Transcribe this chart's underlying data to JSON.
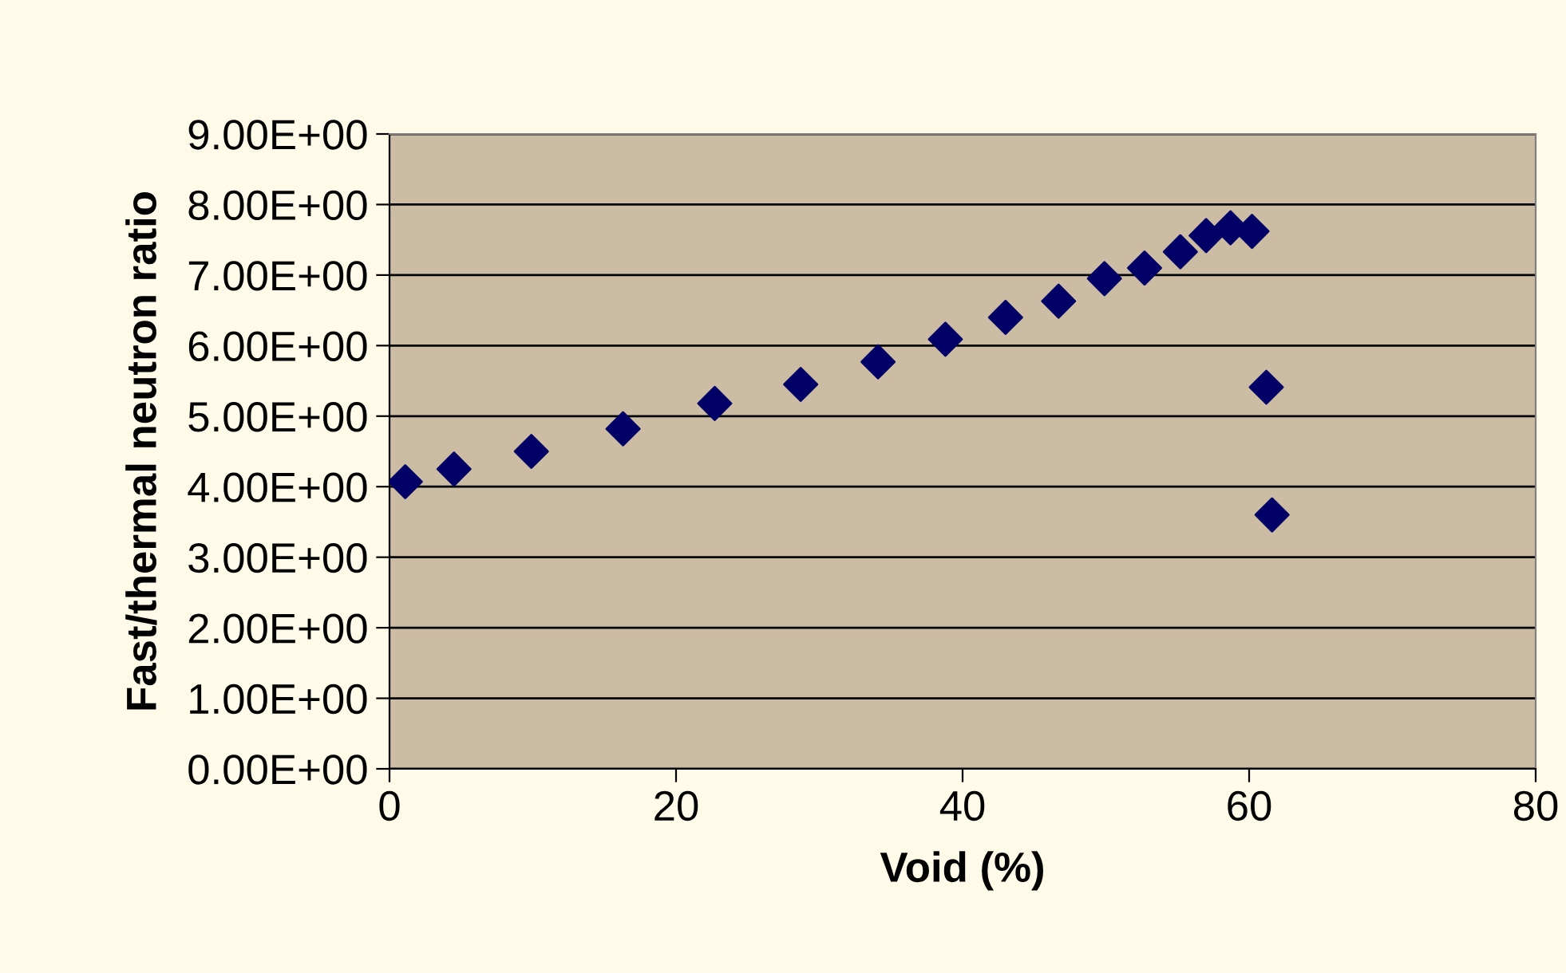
{
  "chart_data": {
    "type": "scatter",
    "xlabel": "Void (%)",
    "ylabel": "Fast/thermal neutron ratio",
    "x": [
      1.1,
      4.5,
      9.9,
      16.3,
      22.7,
      28.7,
      34.1,
      38.8,
      43.0,
      46.7,
      49.9,
      52.7,
      55.2,
      57.0,
      58.7,
      60.2,
      61.2,
      61.6
    ],
    "series": [
      {
        "color": "#000066",
        "values": [
          4.07,
          4.25,
          4.5,
          4.82,
          5.18,
          5.45,
          5.77,
          6.09,
          6.4,
          6.63,
          6.95,
          7.1,
          7.33,
          7.56,
          7.67,
          7.62,
          5.41,
          3.6
        ]
      }
    ],
    "marker": "diamond",
    "grid": "y",
    "legend": false,
    "xlim": [
      0,
      80
    ],
    "xticks": [
      0,
      20,
      40,
      60,
      80
    ],
    "ylim": [
      0,
      9
    ],
    "yticks": [
      {
        "value": 0,
        "label": "0.00E+00"
      },
      {
        "value": 1,
        "label": "1.00E+00"
      },
      {
        "value": 2,
        "label": "2.00E+00"
      },
      {
        "value": 3,
        "label": "3.00E+00"
      },
      {
        "value": 4,
        "label": "4.00E+00"
      },
      {
        "value": 5,
        "label": "5.00E+00"
      },
      {
        "value": 6,
        "label": "6.00E+00"
      },
      {
        "value": 7,
        "label": "7.00E+00"
      },
      {
        "value": 8,
        "label": "8.00E+00"
      },
      {
        "value": 9,
        "label": "9.00E+00"
      }
    ]
  }
}
